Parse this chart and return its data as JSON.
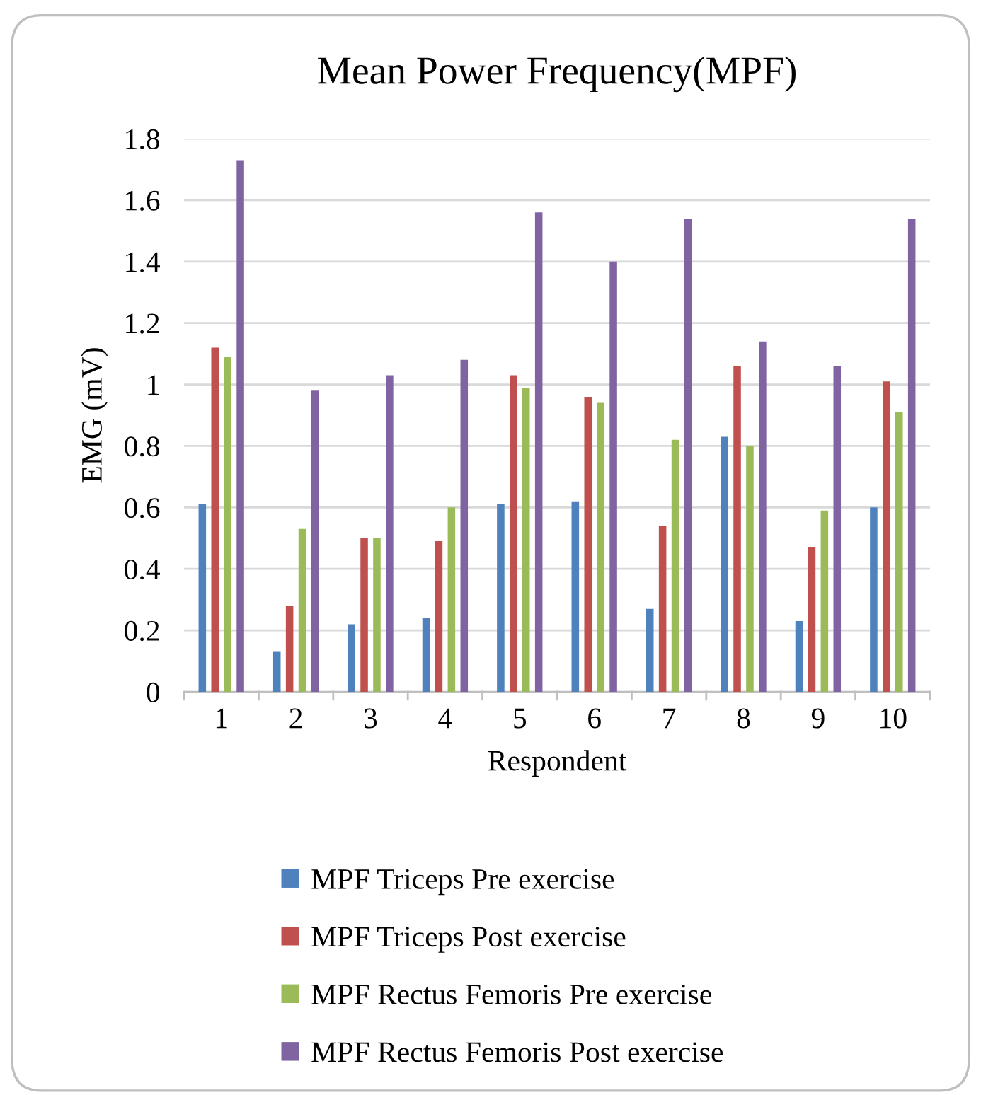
{
  "chart_data": {
    "type": "bar",
    "title": "Mean Power Frequency(MPF)",
    "xlabel": "Respondent",
    "ylabel": "EMG (mV)",
    "categories": [
      "1",
      "2",
      "3",
      "4",
      "5",
      "6",
      "7",
      "8",
      "9",
      "10"
    ],
    "series": [
      {
        "name": "MPF Triceps Pre exercise",
        "color": "#4f81bd",
        "values": [
          0.61,
          0.13,
          0.22,
          0.24,
          0.61,
          0.62,
          0.27,
          0.83,
          0.23,
          0.6
        ]
      },
      {
        "name": "MPF Triceps Post exercise",
        "color": "#c0504d",
        "values": [
          1.12,
          0.28,
          0.5,
          0.49,
          1.03,
          0.96,
          0.54,
          1.06,
          0.47,
          1.01
        ]
      },
      {
        "name": "MPF Rectus Femoris Pre exercise",
        "color": "#9bbb59",
        "values": [
          1.09,
          0.53,
          0.5,
          0.6,
          0.99,
          0.94,
          0.82,
          0.8,
          0.59,
          0.91
        ]
      },
      {
        "name": "MPF Rectus Femoris Post exercise",
        "color": "#8064a2",
        "values": [
          1.73,
          0.98,
          1.03,
          1.08,
          1.56,
          1.4,
          1.54,
          1.14,
          1.06,
          1.54
        ]
      }
    ],
    "ylim": [
      0,
      1.8
    ],
    "yticks": [
      0,
      0.2,
      0.4,
      0.6,
      0.8,
      1,
      1.2,
      1.4,
      1.6,
      1.8
    ],
    "grid": "y",
    "legend": "bottom"
  }
}
